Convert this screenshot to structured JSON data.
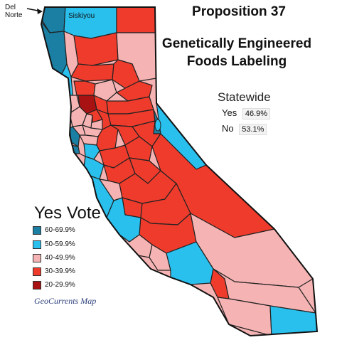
{
  "title_line1": "Proposition 37",
  "title_line2": "Genetically Engineered Foods Labeling",
  "statewide": {
    "heading": "Statewide",
    "yes_label": "Yes",
    "yes_value": "46.9%",
    "no_label": "No",
    "no_value": "53.1%"
  },
  "legend": {
    "title": "Yes Vote",
    "items": [
      {
        "label": "60-69.9%",
        "color": "#1a7fa3"
      },
      {
        "label": "50-59.9%",
        "color": "#29c0ee"
      },
      {
        "label": "40-49.9%",
        "color": "#f6b3b3"
      },
      {
        "label": "30-39.9%",
        "color": "#ef3b2c"
      },
      {
        "label": "20-29.9%",
        "color": "#a81212"
      }
    ]
  },
  "county_labels": {
    "del_norte_line1": "Del",
    "del_norte_line2": "Norte",
    "siskiyou": "Siskiyou"
  },
  "credit": "GeoCurrents Map",
  "colors": {
    "dark_blue": "#1a7fa3",
    "light_blue": "#29c0ee",
    "pink": "#f6b3b3",
    "red": "#ef3b2c",
    "dark_red": "#a81212",
    "border": "#222222"
  }
}
